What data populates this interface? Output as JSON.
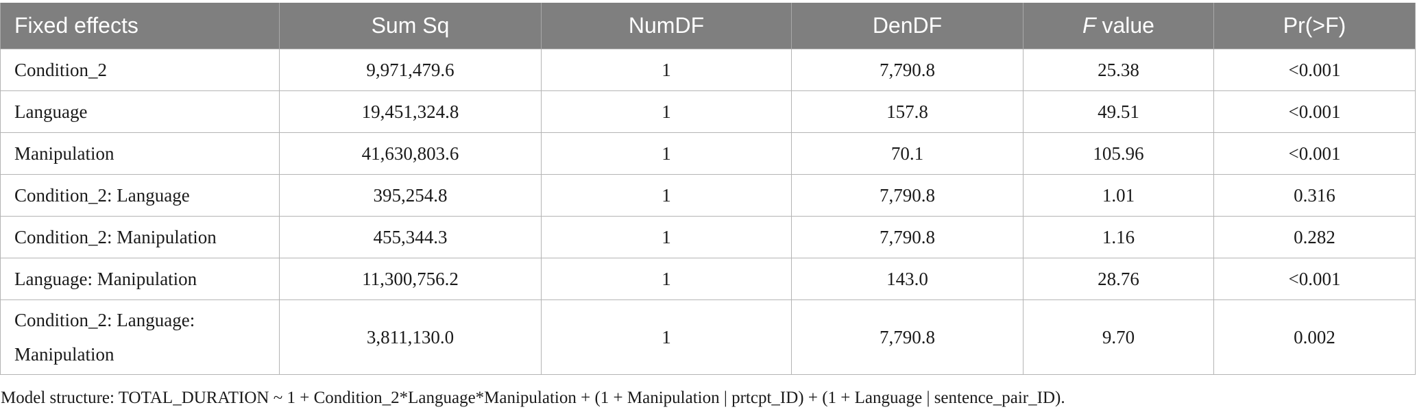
{
  "table": {
    "headers": {
      "fixed_effects": "Fixed effects",
      "sum_sq": "Sum Sq",
      "numdf": "NumDF",
      "dendf": "DenDF",
      "f_value_italic": "F",
      "f_value_rest": " value",
      "pr_f": "Pr(>F)"
    },
    "rows": [
      {
        "effect": "Condition_2",
        "sum_sq": "9,971,479.6",
        "numdf": "1",
        "dendf": "7,790.8",
        "f_value": "25.38",
        "pr_f": "<0.001"
      },
      {
        "effect": "Language",
        "sum_sq": "19,451,324.8",
        "numdf": "1",
        "dendf": "157.8",
        "f_value": "49.51",
        "pr_f": "<0.001"
      },
      {
        "effect": "Manipulation",
        "sum_sq": "41,630,803.6",
        "numdf": "1",
        "dendf": "70.1",
        "f_value": "105.96",
        "pr_f": "<0.001"
      },
      {
        "effect": "Condition_2: Language",
        "sum_sq": "395,254.8",
        "numdf": "1",
        "dendf": "7,790.8",
        "f_value": "1.01",
        "pr_f": "0.316"
      },
      {
        "effect": "Condition_2: Manipulation",
        "sum_sq": "455,344.3",
        "numdf": "1",
        "dendf": "7,790.8",
        "f_value": "1.16",
        "pr_f": "0.282"
      },
      {
        "effect": "Language: Manipulation",
        "sum_sq": "11,300,756.2",
        "numdf": "1",
        "dendf": "143.0",
        "f_value": "28.76",
        "pr_f": "<0.001"
      },
      {
        "effect": "Condition_2: Language: Manipulation",
        "sum_sq": "3,811,130.0",
        "numdf": "1",
        "dendf": "7,790.8",
        "f_value": "9.70",
        "pr_f": "0.002"
      }
    ]
  },
  "footnote": "Model structure: TOTAL_DURATION ~ 1 + Condition_2*Language*Manipulation + (1 + Manipulation | prtcpt_ID) + (1 + Language | sentence_pair_ID).",
  "colors": {
    "header_bg": "#7f7f7f",
    "header_text": "#ffffff",
    "grid": "#b4b4b4"
  }
}
